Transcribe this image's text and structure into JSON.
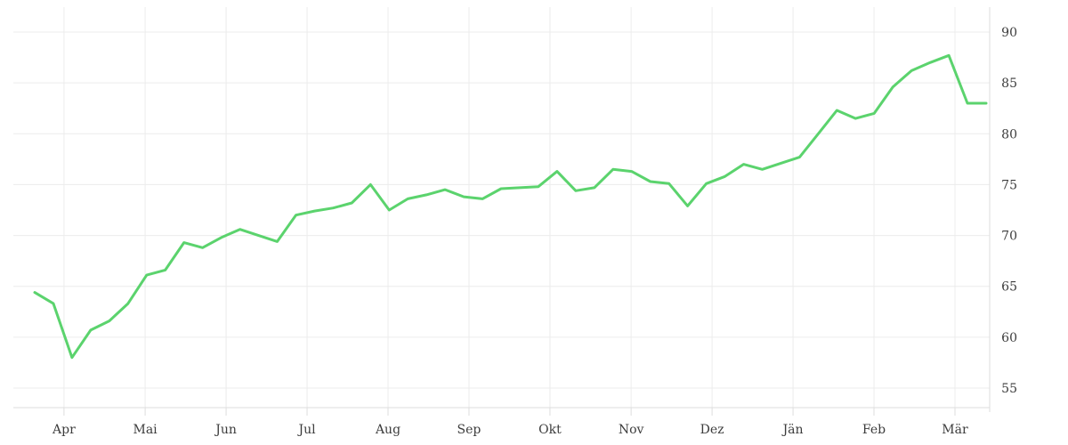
{
  "page": {
    "background_color": "#ffffff",
    "text_color": "#3c3c3c"
  },
  "chart_data": {
    "type": "line",
    "title": "",
    "xlabel": "",
    "ylabel": "",
    "series": [
      {
        "name": "price-line",
        "color": "#5bd36d",
        "stroke_width": 3,
        "frequency": "weekly",
        "values": [
          64.4,
          63.3,
          58.0,
          60.7,
          61.6,
          63.3,
          66.1,
          66.6,
          69.3,
          68.8,
          69.8,
          70.6,
          70.0,
          69.4,
          72.0,
          72.4,
          72.7,
          73.2,
          75.0,
          72.5,
          73.6,
          74.0,
          74.5,
          73.8,
          73.6,
          74.6,
          74.7,
          74.8,
          76.3,
          74.4,
          74.7,
          76.5,
          76.3,
          75.3,
          75.1,
          72.9,
          75.1,
          75.8,
          77.0,
          76.5,
          77.1,
          77.7,
          80.0,
          82.3,
          81.5,
          82.0,
          84.6,
          86.2,
          87.0,
          87.7,
          83.0,
          83.0
        ]
      }
    ],
    "x_axis": {
      "ticks": [
        {
          "label": "Apr",
          "week_index": 1.57
        },
        {
          "label": "Mai",
          "week_index": 5.92
        },
        {
          "label": "Jun",
          "week_index": 10.26
        },
        {
          "label": "Jul",
          "week_index": 14.6
        },
        {
          "label": "Aug",
          "week_index": 18.94
        },
        {
          "label": "Sep",
          "week_index": 23.28
        },
        {
          "label": "Okt",
          "week_index": 27.62
        },
        {
          "label": "Nov",
          "week_index": 31.97
        },
        {
          "label": "Dez",
          "week_index": 36.31
        },
        {
          "label": "Jän",
          "week_index": 40.65
        },
        {
          "label": "Feb",
          "week_index": 44.99
        },
        {
          "label": "Mär",
          "week_index": 49.33
        }
      ]
    },
    "y_axis": {
      "position": "right",
      "ticks": [
        55,
        60,
        65,
        70,
        75,
        80,
        85,
        90
      ],
      "ylim": [
        53.1,
        92.4
      ]
    },
    "grid": {
      "visible": true,
      "gridline_color": "#ececec",
      "axis_color": "#dddddd",
      "horizontal": true,
      "vertical": true
    },
    "legend": {
      "visible": false
    }
  }
}
